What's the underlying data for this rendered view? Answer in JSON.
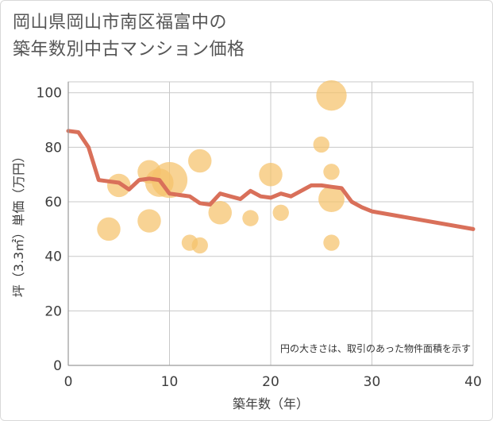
{
  "title": {
    "line1": "岡山県岡山市南区福富中の",
    "line2": "築年数別中古マンション価格"
  },
  "note": "円の大きさは、取引のあった物件面積を示す",
  "colors": {
    "line": "#d9705a",
    "bubble": "#f5c26b",
    "grid": "#c8c8c8",
    "axis": "#9a9a9a",
    "plot_bg": "#ffffff"
  },
  "chart_data": {
    "type": "scatter",
    "xlabel": "築年数（年）",
    "ylabel": "坪（3.3㎡）単価（万円）",
    "xlim": [
      0,
      40
    ],
    "ylim": [
      0,
      104
    ],
    "x_ticks": [
      "0",
      "10",
      "20",
      "30",
      "40"
    ],
    "y_ticks": [
      "0",
      "20",
      "40",
      "60",
      "80",
      "100"
    ],
    "grid": true,
    "series": [
      {
        "type": "scatter",
        "points": [
          {
            "x": 4,
            "y": 50,
            "size": 3
          },
          {
            "x": 5,
            "y": 66,
            "size": 3
          },
          {
            "x": 8,
            "y": 53,
            "size": 3
          },
          {
            "x": 8,
            "y": 71,
            "size": 3
          },
          {
            "x": 9,
            "y": 67,
            "size": 5
          },
          {
            "x": 10,
            "y": 68,
            "size": 9
          },
          {
            "x": 12,
            "y": 45,
            "size": 1
          },
          {
            "x": 13,
            "y": 44,
            "size": 1
          },
          {
            "x": 13,
            "y": 75,
            "size": 3
          },
          {
            "x": 15,
            "y": 56,
            "size": 3
          },
          {
            "x": 18,
            "y": 54,
            "size": 1
          },
          {
            "x": 20,
            "y": 70,
            "size": 3
          },
          {
            "x": 21,
            "y": 56,
            "size": 1
          },
          {
            "x": 25,
            "y": 81,
            "size": 1
          },
          {
            "x": 26,
            "y": 99,
            "size": 6
          },
          {
            "x": 26,
            "y": 71,
            "size": 1
          },
          {
            "x": 26,
            "y": 61,
            "size": 4
          },
          {
            "x": 26,
            "y": 45,
            "size": 1
          }
        ]
      },
      {
        "type": "line",
        "x": [
          0,
          1,
          2,
          3,
          4,
          5,
          6,
          7,
          8,
          9,
          10,
          11,
          12,
          13,
          14,
          15,
          16,
          17,
          18,
          19,
          20,
          21,
          22,
          23,
          24,
          25,
          26,
          27,
          28,
          29,
          30,
          40
        ],
        "y": [
          86,
          85.5,
          80,
          68,
          67.5,
          67,
          64.5,
          68,
          68.5,
          68,
          63,
          62.5,
          62,
          59.5,
          59,
          63,
          62,
          61,
          64,
          62,
          61.5,
          63,
          62,
          64,
          66,
          66,
          65.5,
          65,
          60,
          58,
          56.5,
          50
        ]
      }
    ]
  }
}
